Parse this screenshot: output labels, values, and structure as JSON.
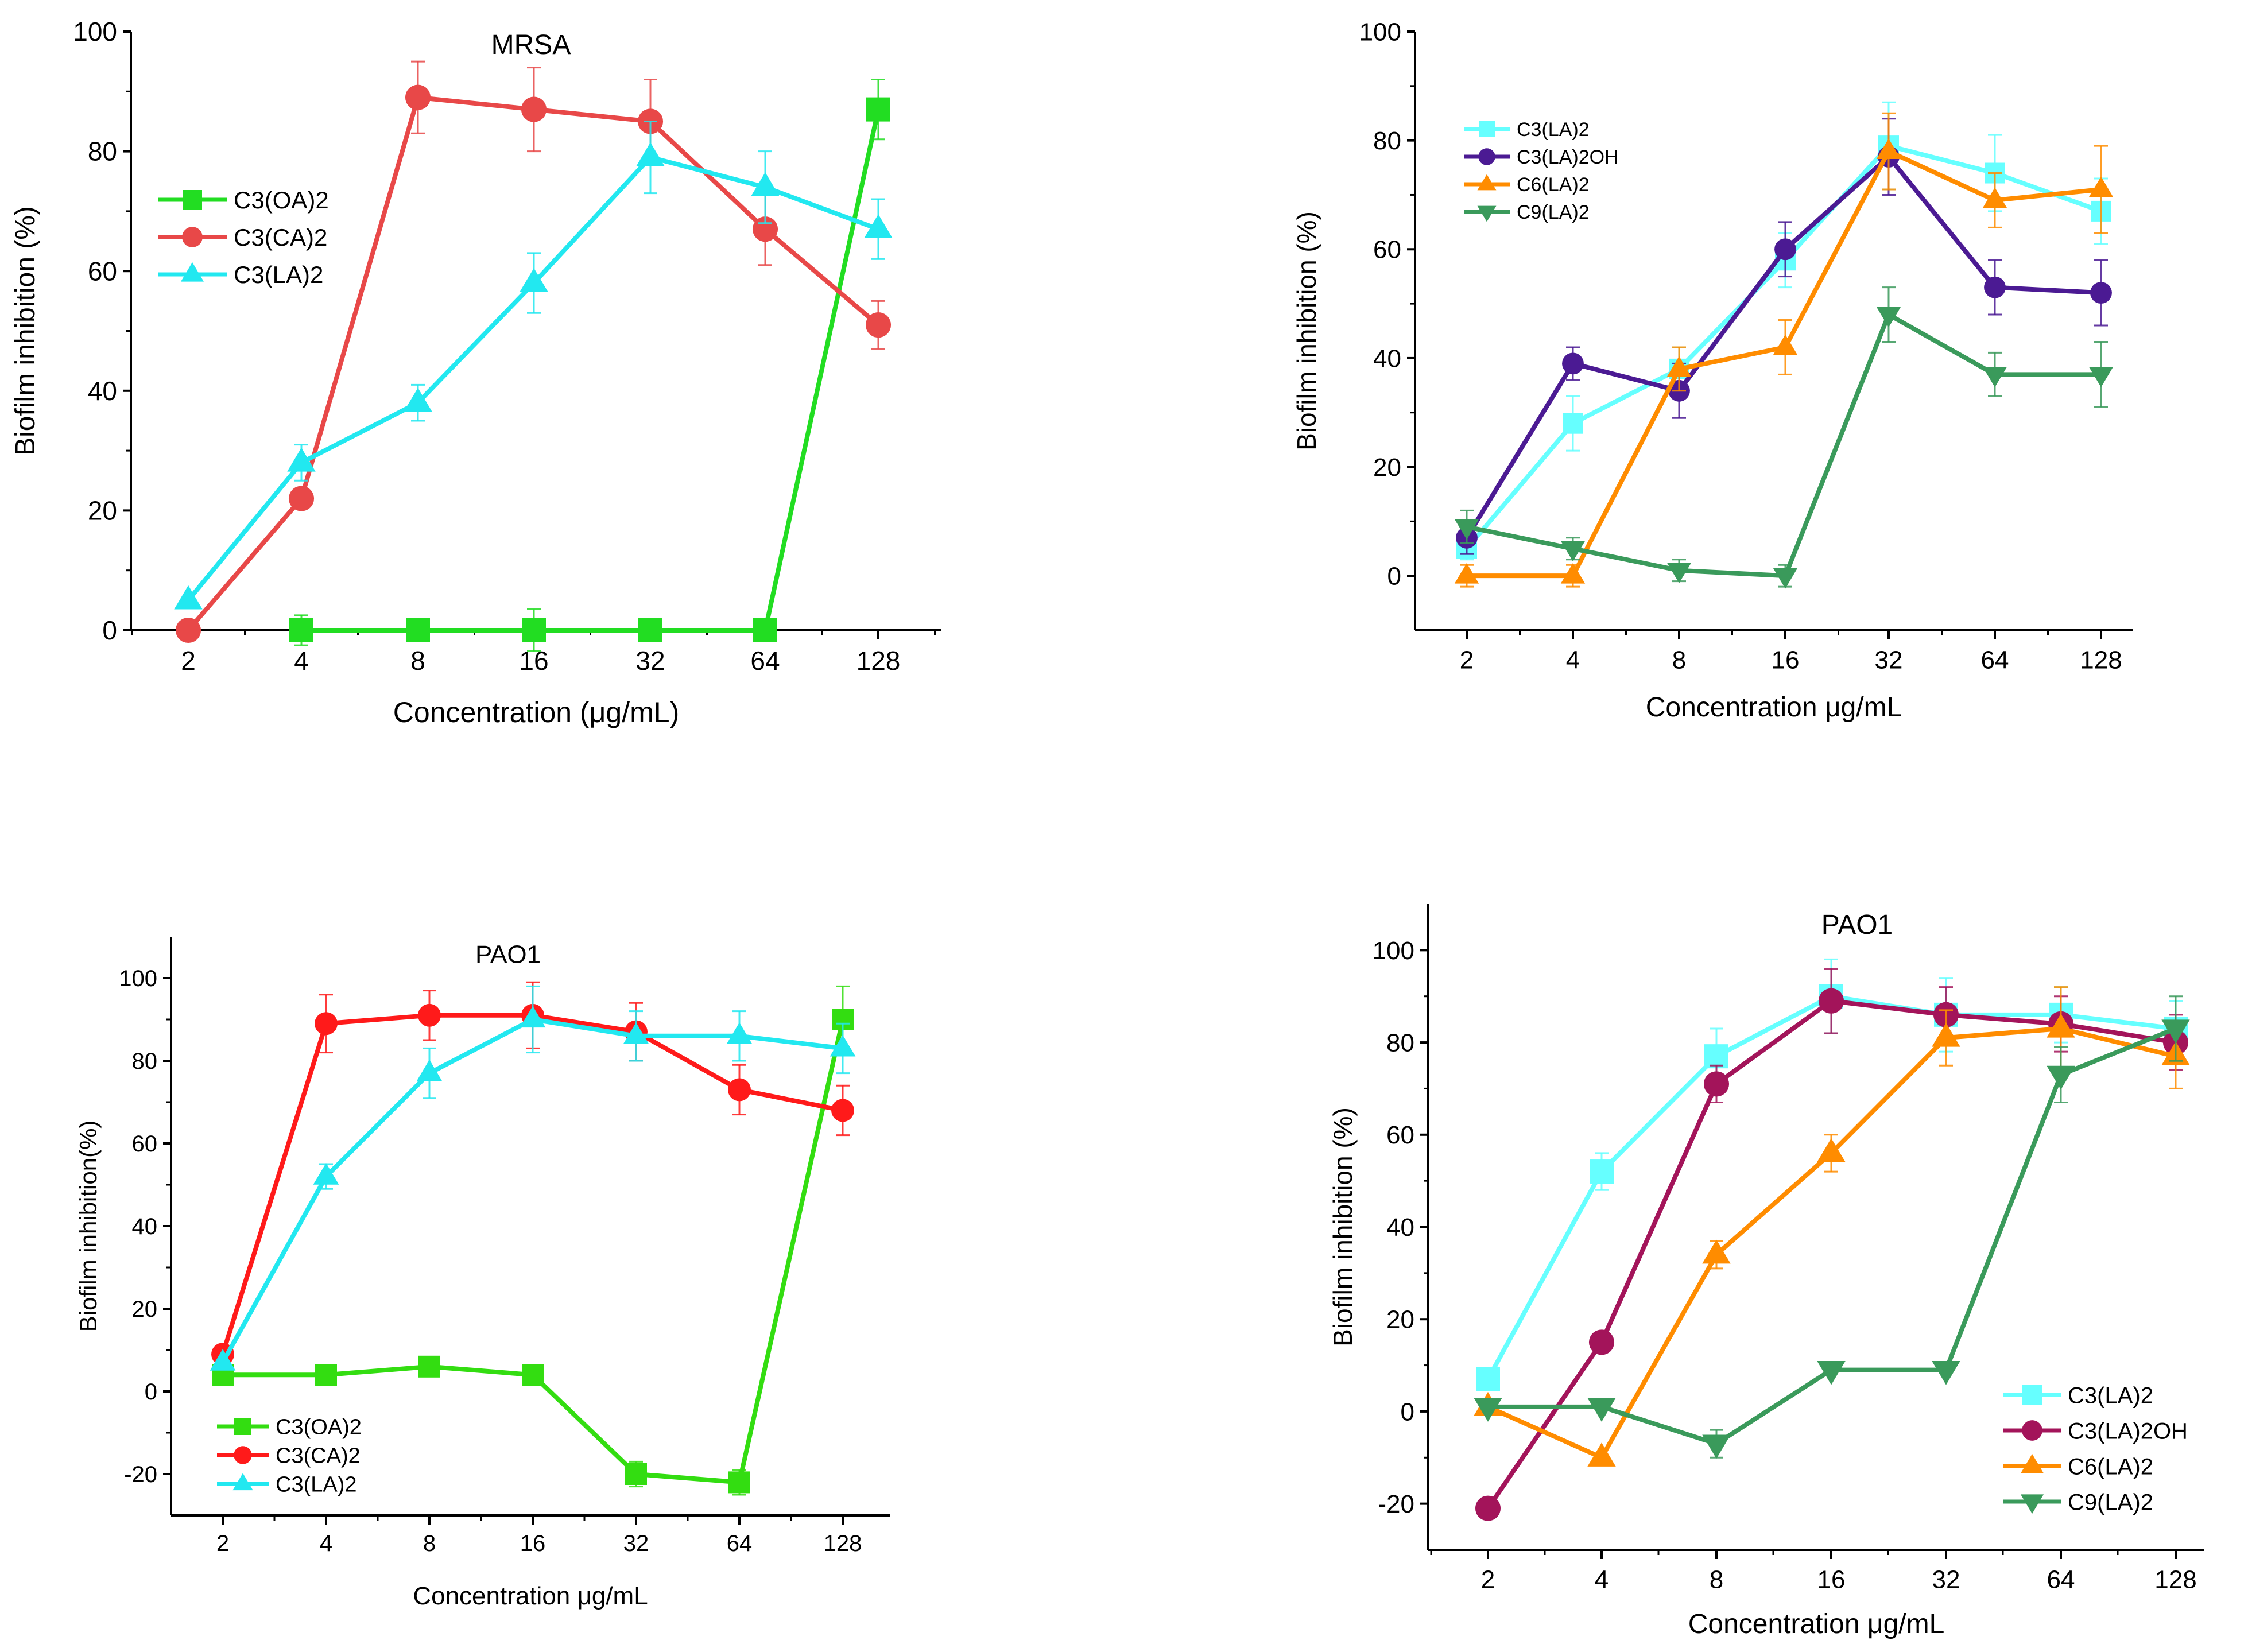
{
  "chart_data": [
    {
      "id": "p1",
      "type": "line",
      "title": "MRSA",
      "xlabel": "Concentration (μg/mL)",
      "ylabel": "Biofilm inhibition (%)",
      "categories": [
        "2",
        "4",
        "8",
        "16",
        "32",
        "64",
        "128"
      ],
      "ylim": [
        0,
        100
      ],
      "yticks": [
        0,
        20,
        40,
        60,
        80,
        100
      ],
      "legend_position": "upper-left",
      "series": [
        {
          "name": "C3(OA)2",
          "color": "#22dd22",
          "marker": "square",
          "values": [
            null,
            0,
            0,
            0,
            0,
            0,
            87
          ],
          "errors": [
            0,
            2.5,
            0.5,
            3.5,
            0.5,
            0.5,
            5
          ]
        },
        {
          "name": "C3(CA)2",
          "color": "#e84848",
          "marker": "circle",
          "values": [
            0,
            22,
            89,
            87,
            85,
            67,
            51
          ],
          "errors": [
            0,
            0,
            6,
            7,
            7,
            6,
            4
          ]
        },
        {
          "name": "C3(LA)2",
          "color": "#22e8f0",
          "marker": "triangle-up",
          "values": [
            5,
            28,
            38,
            58,
            79,
            74,
            67
          ],
          "errors": [
            0,
            3,
            3,
            5,
            6,
            6,
            5
          ]
        }
      ]
    },
    {
      "id": "p2",
      "type": "line",
      "title": "",
      "xlabel": "Concentration μg/mL",
      "ylabel": "Biofilm inhibition (%)",
      "categories": [
        "2",
        "4",
        "8",
        "16",
        "32",
        "64",
        "128"
      ],
      "ylim": [
        -10,
        100
      ],
      "yticks": [
        0,
        20,
        40,
        60,
        80,
        100
      ],
      "legend_position": "upper-left",
      "series": [
        {
          "name": "C3(LA)2",
          "color": "#66ffff",
          "marker": "square",
          "values": [
            5,
            28,
            38,
            58,
            79,
            74,
            67
          ],
          "errors": [
            2,
            5,
            4,
            5,
            8,
            7,
            6
          ]
        },
        {
          "name": "C3(LA)2OH",
          "color": "#4b1a93",
          "marker": "circle",
          "values": [
            7,
            39,
            34,
            60,
            77,
            53,
            52
          ],
          "errors": [
            3,
            3,
            5,
            5,
            7,
            5,
            6
          ]
        },
        {
          "name": "C6(LA)2",
          "color": "#ff8c00",
          "marker": "triangle-up",
          "values": [
            0,
            0,
            38,
            42,
            78,
            69,
            71
          ],
          "errors": [
            2,
            2,
            4,
            5,
            7,
            5,
            8
          ]
        },
        {
          "name": "C9(LA)2",
          "color": "#3a9a5b",
          "marker": "triangle-down",
          "values": [
            9,
            5,
            1,
            0,
            48,
            37,
            37
          ],
          "errors": [
            3,
            2,
            2,
            2,
            5,
            4,
            6
          ]
        }
      ]
    },
    {
      "id": "p3",
      "type": "line",
      "title": "PAO1",
      "xlabel": "Concentration μg/mL",
      "ylabel": "Biofilm inhibition(%)",
      "categories": [
        "2",
        "4",
        "8",
        "16",
        "32",
        "64",
        "128"
      ],
      "ylim": [
        -30,
        110
      ],
      "yticks": [
        -20,
        0,
        20,
        40,
        60,
        80,
        100
      ],
      "legend_position": "lower-left",
      "series": [
        {
          "name": "C3(OA)2",
          "color": "#33dd11",
          "marker": "square",
          "values": [
            4,
            4,
            6,
            4,
            -20,
            -22,
            90
          ],
          "errors": [
            0.5,
            0.5,
            0.5,
            0.5,
            3,
            3,
            8
          ]
        },
        {
          "name": "C3(CA)2",
          "color": "#ff1a1a",
          "marker": "circle",
          "values": [
            9,
            89,
            91,
            91,
            87,
            73,
            68
          ],
          "errors": [
            0,
            7,
            6,
            8,
            7,
            6,
            6
          ]
        },
        {
          "name": "C3(LA)2",
          "color": "#22e8f0",
          "marker": "triangle-up",
          "values": [
            7,
            52,
            77,
            90,
            86,
            86,
            83
          ],
          "errors": [
            0,
            3,
            6,
            8,
            6,
            6,
            6
          ]
        }
      ]
    },
    {
      "id": "p4",
      "type": "line",
      "title": "PAO1",
      "xlabel": "Concentration μg/mL",
      "ylabel": "Biofilm inhibition (%)",
      "categories": [
        "2",
        "4",
        "8",
        "16",
        "32",
        "64",
        "128"
      ],
      "ylim": [
        -30,
        110
      ],
      "yticks": [
        -20,
        0,
        20,
        40,
        60,
        80,
        100
      ],
      "legend_position": "lower-right",
      "series": [
        {
          "name": "C3(LA)2",
          "color": "#66ffff",
          "marker": "square",
          "values": [
            7,
            52,
            77,
            90,
            86,
            86,
            83
          ],
          "errors": [
            2,
            4,
            6,
            8,
            8,
            6,
            6
          ]
        },
        {
          "name": "C3(LA)2OH",
          "color": "#a3145a",
          "marker": "circle",
          "values": [
            -21,
            15,
            71,
            89,
            86,
            84,
            80
          ],
          "errors": [
            0,
            0,
            4,
            7,
            6,
            6,
            6
          ]
        },
        {
          "name": "C6(LA)2",
          "color": "#ff8c00",
          "marker": "triangle-up",
          "values": [
            1,
            -10,
            34,
            56,
            81,
            83,
            77
          ],
          "errors": [
            0,
            0,
            3,
            4,
            6,
            9,
            7
          ]
        },
        {
          "name": "C9(LA)2",
          "color": "#3a9a5b",
          "marker": "triangle-down",
          "values": [
            1,
            1,
            -7,
            9,
            9,
            73,
            83
          ],
          "errors": [
            0,
            0,
            3,
            0,
            0,
            6,
            7
          ]
        }
      ]
    }
  ]
}
